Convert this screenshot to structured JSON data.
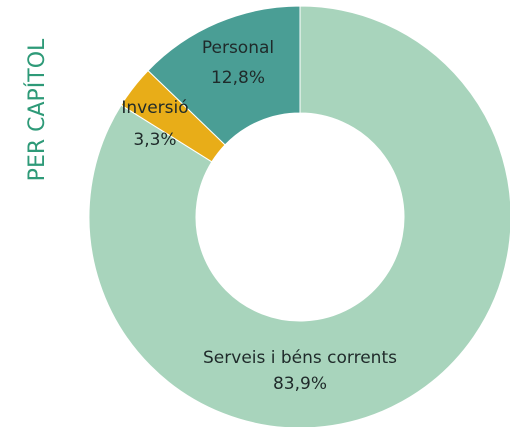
{
  "chart_data": {
    "type": "pie",
    "title": "PER CAPÍTOL",
    "categories": [
      "Serveis i béns corrents",
      "Inversió",
      "Personal"
    ],
    "values": [
      83.9,
      3.3,
      12.8
    ],
    "value_labels": [
      "83,9%",
      "3,3%",
      "12,8%"
    ],
    "colors": [
      "#a8d4bc",
      "#e8ad18",
      "#4a9e95"
    ],
    "title_color": "#2e9a78"
  }
}
